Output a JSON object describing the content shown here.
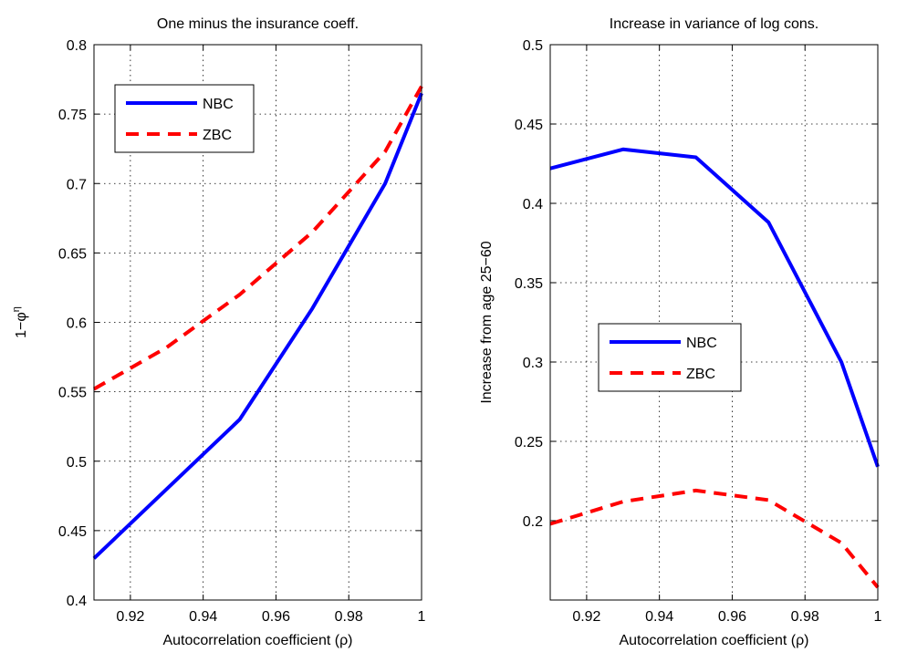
{
  "chart_data": [
    {
      "type": "line",
      "title": "One minus the insurance coeff.",
      "xlabel": "Autocorrelation coefficient (ρ)",
      "ylabel_base": "1−φ",
      "ylabel_sup": "η",
      "xlim": [
        0.91,
        1.0
      ],
      "ylim": [
        0.4,
        0.8
      ],
      "xticks": [
        0.92,
        0.94,
        0.96,
        0.98,
        1.0
      ],
      "xtick_labels": [
        "0.92",
        "0.94",
        "0.96",
        "0.98",
        "1"
      ],
      "yticks": [
        0.4,
        0.45,
        0.5,
        0.55,
        0.6,
        0.65,
        0.7,
        0.75,
        0.8
      ],
      "ytick_labels": [
        "0.4",
        "0.45",
        "0.5",
        "0.55",
        "0.6",
        "0.65",
        "0.7",
        "0.75",
        "0.8"
      ],
      "grid": true,
      "legend_position": "top-left",
      "series": [
        {
          "name": "NBC",
          "color": "#0000ff",
          "style": "solid",
          "x": [
            0.91,
            0.93,
            0.95,
            0.97,
            0.99,
            1.0
          ],
          "y": [
            0.43,
            0.48,
            0.53,
            0.61,
            0.7,
            0.765
          ]
        },
        {
          "name": "ZBC",
          "color": "#ff0000",
          "style": "dashed",
          "x": [
            0.91,
            0.93,
            0.95,
            0.97,
            0.99,
            1.0
          ],
          "y": [
            0.552,
            0.582,
            0.62,
            0.665,
            0.723,
            0.77
          ]
        }
      ]
    },
    {
      "type": "line",
      "title": "Increase in variance of log cons.",
      "xlabel": "Autocorrelation coefficient (ρ)",
      "ylabel_base": "Increase from age 25−60",
      "ylabel_sup": "",
      "xlim": [
        0.91,
        1.0
      ],
      "ylim": [
        0.15,
        0.5
      ],
      "xticks": [
        0.92,
        0.94,
        0.96,
        0.98,
        1.0
      ],
      "xtick_labels": [
        "0.92",
        "0.94",
        "0.96",
        "0.98",
        "1"
      ],
      "yticks": [
        0.2,
        0.25,
        0.3,
        0.35,
        0.4,
        0.45,
        0.5
      ],
      "ytick_labels": [
        "0.2",
        "0.25",
        "0.3",
        "0.35",
        "0.4",
        "0.45",
        "0.5"
      ],
      "grid": true,
      "legend_position": "center-left",
      "series": [
        {
          "name": "NBC",
          "color": "#0000ff",
          "style": "solid",
          "x": [
            0.91,
            0.93,
            0.95,
            0.97,
            0.99,
            1.0
          ],
          "y": [
            0.422,
            0.434,
            0.429,
            0.388,
            0.3,
            0.234
          ]
        },
        {
          "name": "ZBC",
          "color": "#ff0000",
          "style": "dashed",
          "x": [
            0.91,
            0.93,
            0.95,
            0.97,
            0.99,
            1.0
          ],
          "y": [
            0.198,
            0.212,
            0.219,
            0.213,
            0.186,
            0.158
          ]
        }
      ]
    }
  ]
}
